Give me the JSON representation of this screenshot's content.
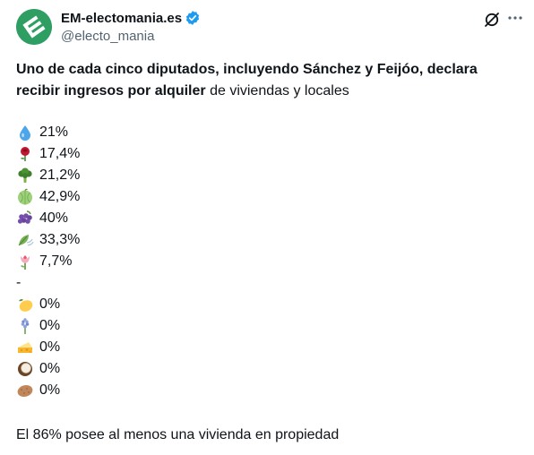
{
  "author": {
    "display_name": "EM-electomania.es",
    "handle": "@electo_mania",
    "verified_icon": "verified-badge-icon",
    "avatar_icon": "electomania-logo-icon",
    "brand_color": "#2e9e63",
    "verified_color": "#1d9bf0"
  },
  "actions": {
    "grok_icon": "grok-icon",
    "more_icon": "more-options-icon"
  },
  "post": {
    "headline_bold": "Uno de cada cinco diputados, incluyendo Sánchez y Feijóo, declara recibir ingresos por alquiler",
    "headline_rest": " de viviendas y locales",
    "stats": [
      {
        "icon": "droplet-icon",
        "value": "21%"
      },
      {
        "icon": "rose-icon",
        "value": "17,4%"
      },
      {
        "icon": "broccoli-icon",
        "value": "21,2%"
      },
      {
        "icon": "melon-icon",
        "value": "42,9%"
      },
      {
        "icon": "grapes-icon",
        "value": "40%"
      },
      {
        "icon": "leaf-wind-icon",
        "value": "33,3%"
      },
      {
        "icon": "tulip-icon",
        "value": "7,7%"
      }
    ],
    "separator": "-",
    "zero_stats": [
      {
        "icon": "lemon-icon",
        "value": "0%"
      },
      {
        "icon": "hyacinth-icon",
        "value": "0%"
      },
      {
        "icon": "cheese-icon",
        "value": "0%"
      },
      {
        "icon": "coconut-icon",
        "value": "0%"
      },
      {
        "icon": "potato-icon",
        "value": "0%"
      }
    ],
    "footer": "El 86% posee al menos una vivienda en propiedad"
  }
}
